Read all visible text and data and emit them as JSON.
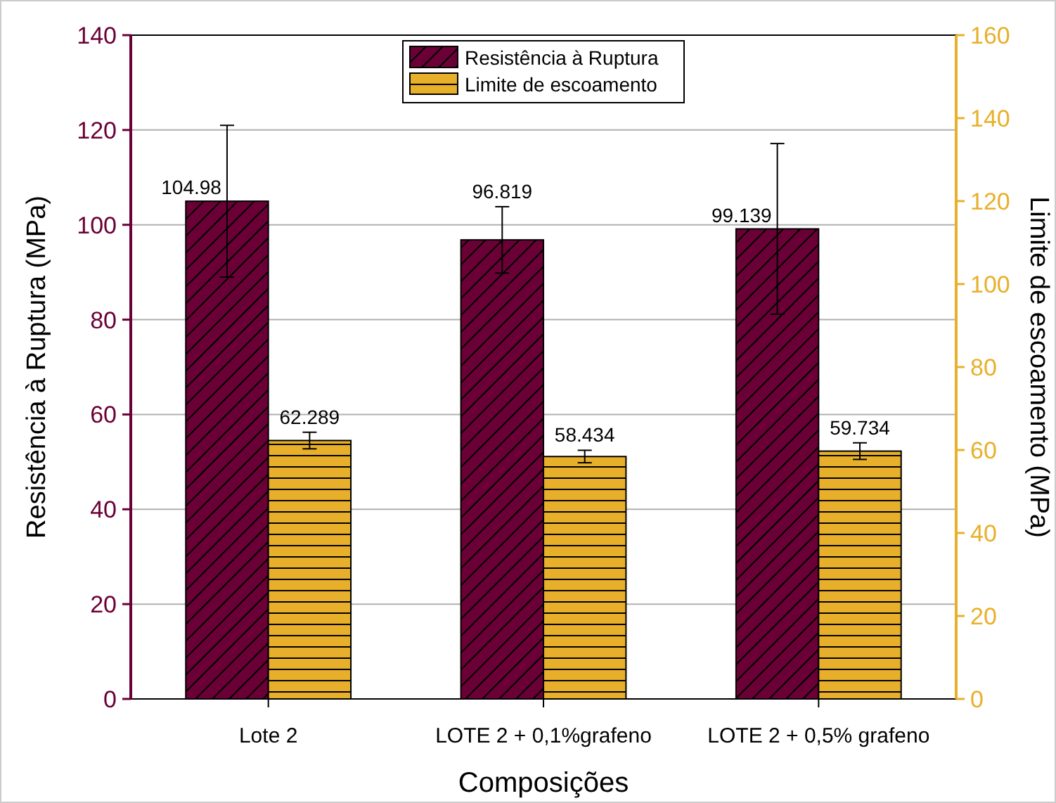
{
  "chart_data": {
    "type": "bar",
    "xlabel": "Composições",
    "ylabel": "Resistência à Ruptura (MPa)",
    "y2label": "Limite de escoamento (MPa)",
    "categories": [
      "Lote 2",
      "LOTE 2 + 0,1%grafeno",
      "LOTE 2 + 0,5% grafeno"
    ],
    "series": [
      {
        "name": "Resistência à Ruptura",
        "color": "#6b0036",
        "values": [
          104.98,
          96.819,
          99.139
        ],
        "errors": [
          16,
          7,
          18
        ],
        "axis": "y"
      },
      {
        "name": "Limite de escoamento",
        "color": "#e8b02a",
        "values": [
          62.289,
          58.434,
          59.734
        ],
        "errors": [
          2,
          1.5,
          2
        ],
        "axis": "y2"
      }
    ],
    "ylim": [
      0,
      140
    ],
    "yticks": [
      0,
      20,
      40,
      60,
      80,
      100,
      120,
      140
    ],
    "y2lim": [
      0,
      160
    ],
    "y2ticks": [
      0,
      20,
      40,
      60,
      80,
      100,
      120,
      140,
      160
    ],
    "data_labels": true,
    "grid": "y",
    "legend": "top"
  }
}
